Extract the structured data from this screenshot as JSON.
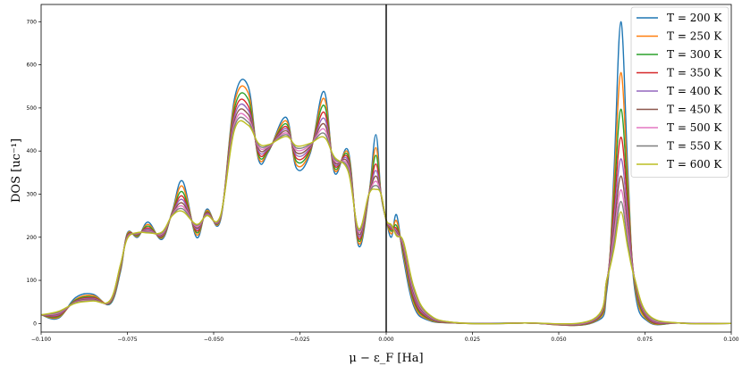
{
  "chart_data": {
    "type": "line",
    "title": "",
    "xlabel": "μ − ε_F [Ha]",
    "ylabel": "DOS [uc⁻¹]",
    "xlim": [
      -0.1,
      0.1
    ],
    "ylim": [
      -20,
      740
    ],
    "xticks": [
      -0.1,
      -0.075,
      -0.05,
      -0.025,
      0.0,
      0.025,
      0.05,
      0.075,
      0.1
    ],
    "xtick_labels": [
      "−0.100",
      "−0.075",
      "−0.050",
      "−0.025",
      "0.000",
      "0.025",
      "0.050",
      "0.075",
      "0.100"
    ],
    "yticks": [
      0,
      100,
      200,
      300,
      400,
      500,
      600,
      700
    ],
    "ytick_labels": [
      "0",
      "100",
      "200",
      "300",
      "400",
      "500",
      "600",
      "700"
    ],
    "grid": false,
    "legend_position": "top-right",
    "vertical_line": {
      "x": 0.0,
      "color": "#000000"
    },
    "colors": [
      "#1f77b4",
      "#ff7f0e",
      "#2ca02c",
      "#d62728",
      "#9467bd",
      "#8c564b",
      "#e377c2",
      "#7f7f7f",
      "#bcbd22"
    ],
    "x": [
      -0.1,
      -0.095,
      -0.09,
      -0.085,
      -0.08,
      -0.077,
      -0.075,
      -0.072,
      -0.069,
      -0.065,
      -0.062,
      -0.059,
      -0.055,
      -0.052,
      -0.048,
      -0.044,
      -0.04,
      -0.037,
      -0.034,
      -0.029,
      -0.026,
      -0.022,
      -0.018,
      -0.015,
      -0.011,
      -0.008,
      -0.005,
      -0.003,
      -0.0015,
      0.0,
      0.0015,
      0.003,
      0.005,
      0.008,
      0.012,
      0.02,
      0.04,
      0.06,
      0.064,
      0.066,
      0.068,
      0.07,
      0.072,
      0.076,
      0.085,
      0.1
    ],
    "series": [
      {
        "name": "T = 200 K",
        "values": [
          20,
          12,
          60,
          68,
          45,
          120,
          210,
          200,
          235,
          195,
          260,
          330,
          200,
          265,
          240,
          520,
          550,
          380,
          400,
          478,
          360,
          395,
          538,
          350,
          400,
          180,
          300,
          438,
          300,
          240,
          200,
          252,
          150,
          40,
          8,
          1,
          1,
          2,
          80,
          350,
          700,
          360,
          80,
          4,
          1,
          0
        ]
      },
      {
        "name": "T = 250 K",
        "values": [
          20,
          14,
          56,
          65,
          47,
          124,
          208,
          202,
          230,
          198,
          258,
          318,
          206,
          262,
          243,
          510,
          535,
          385,
          402,
          470,
          368,
          399,
          522,
          356,
          394,
          186,
          300,
          408,
          300,
          240,
          208,
          238,
          158,
          46,
          10,
          1,
          1,
          3,
          90,
          320,
          582,
          330,
          90,
          6,
          1,
          0
        ]
      },
      {
        "name": "T = 300 K",
        "values": [
          20,
          16,
          54,
          62,
          48,
          127,
          206,
          204,
          226,
          200,
          256,
          305,
          211,
          259,
          245,
          498,
          520,
          390,
          403,
          463,
          376,
          402,
          506,
          361,
          388,
          192,
          300,
          390,
          300,
          240,
          214,
          227,
          164,
          52,
          12,
          1,
          1,
          4,
          96,
          290,
          497,
          300,
          96,
          8,
          1,
          0
        ]
      },
      {
        "name": "T = 350 K",
        "values": [
          20,
          18,
          52,
          60,
          49,
          130,
          204,
          206,
          222,
          202,
          255,
          295,
          215,
          257,
          246,
          488,
          505,
          395,
          405,
          457,
          383,
          405,
          490,
          366,
          382,
          197,
          300,
          370,
          300,
          240,
          218,
          220,
          170,
          58,
          14,
          1,
          1,
          5,
          100,
          265,
          432,
          275,
          100,
          10,
          1,
          0
        ]
      },
      {
        "name": "T = 400 K",
        "values": [
          20,
          20,
          51,
          58,
          50,
          132,
          202,
          207,
          219,
          204,
          254,
          287,
          219,
          255,
          247,
          479,
          495,
          400,
          407,
          452,
          390,
          408,
          476,
          370,
          376,
          202,
          300,
          355,
          300,
          240,
          221,
          215,
          174,
          64,
          16,
          1,
          1,
          6,
          102,
          240,
          382,
          250,
          102,
          12,
          1,
          0
        ]
      },
      {
        "name": "T = 450 K",
        "values": [
          20,
          22,
          50,
          56,
          51,
          134,
          200,
          208,
          216,
          206,
          253,
          279,
          222,
          253,
          248,
          470,
          485,
          405,
          409,
          447,
          396,
          411,
          463,
          374,
          370,
          207,
          300,
          342,
          300,
          240,
          223,
          211,
          178,
          70,
          18,
          1,
          1,
          7,
          103,
          220,
          342,
          228,
          103,
          14,
          1,
          0
        ]
      },
      {
        "name": "T = 500 K",
        "values": [
          20,
          24,
          49,
          54,
          52,
          135,
          199,
          209,
          214,
          208,
          252,
          272,
          225,
          252,
          249,
          462,
          475,
          410,
          411,
          442,
          402,
          414,
          451,
          378,
          364,
          212,
          300,
          330,
          300,
          240,
          225,
          208,
          182,
          75,
          20,
          2,
          1,
          8,
          104,
          202,
          310,
          208,
          104,
          16,
          1,
          0
        ]
      },
      {
        "name": "T = 550 K",
        "values": [
          20,
          26,
          48,
          53,
          53,
          136,
          198,
          210,
          212,
          210,
          251,
          266,
          228,
          251,
          250,
          455,
          467,
          414,
          413,
          438,
          407,
          416,
          441,
          382,
          358,
          216,
          300,
          320,
          300,
          240,
          227,
          205,
          186,
          80,
          22,
          2,
          1,
          9,
          104,
          186,
          283,
          191,
          104,
          18,
          1,
          0
        ]
      },
      {
        "name": "T = 600 K",
        "values": [
          20,
          28,
          47,
          52,
          54,
          137,
          197,
          211,
          210,
          212,
          250,
          260,
          230,
          250,
          251,
          448,
          460,
          418,
          415,
          434,
          412,
          418,
          432,
          386,
          352,
          220,
          300,
          311,
          300,
          240,
          229,
          203,
          190,
          85,
          24,
          2,
          1,
          10,
          104,
          172,
          259,
          176,
          104,
          20,
          1,
          0
        ]
      }
    ]
  }
}
